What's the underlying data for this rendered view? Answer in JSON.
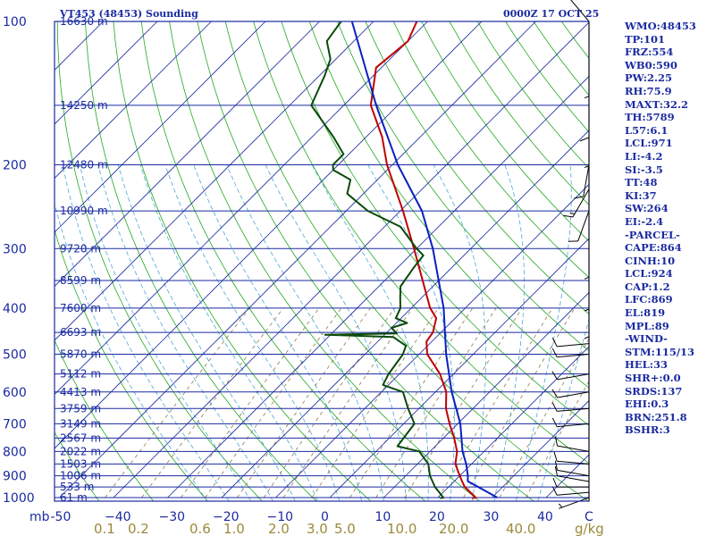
{
  "header": {
    "station": "VT453 (48453) Sounding",
    "time": "0000Z 17 OCT 25"
  },
  "units": {
    "pressure": "mb",
    "temperature": "C",
    "mixing": "g/kg"
  },
  "colors": {
    "frame": "#1a2aa0",
    "isobar": "#1a2aa0",
    "isotherm": "#1a2aa0",
    "dry_adiabat": "#22a822",
    "moist_adiabat": "#4aa8d8",
    "mixing_line": "#8a7a4a",
    "temperature": "#c00000",
    "dewpoint": "#0a4a0a",
    "parcel": "#0a20c0",
    "wind": "#000000"
  },
  "chart_data": {
    "type": "skew-t",
    "title": "VT453 (48453) Sounding 0000Z 17 OCT 25",
    "pressure_levels": [
      100,
      200,
      300,
      400,
      500,
      600,
      700,
      800,
      900,
      1000
    ],
    "pressure_labels": [
      "100",
      "200",
      "300",
      "400",
      "500",
      "600",
      "700",
      "800",
      "900",
      "1000"
    ],
    "pressure_unit_label": "mb",
    "temperature_ticks": [
      -50,
      -40,
      -30,
      -20,
      -10,
      0,
      10,
      20,
      30,
      40,
      50
    ],
    "temperature_labels": [
      "-50",
      "−40",
      "−30",
      "−20",
      "−10",
      "0",
      "10",
      "20",
      "30",
      "40"
    ],
    "temperature_unit_label": "C",
    "mixing_ratio_labels": [
      "0.1",
      "0.2",
      "0.6",
      "1.0",
      "2.0",
      "3.0",
      "5.0",
      "10.0",
      "20.0",
      "40.0"
    ],
    "mixing_ratio_unit_label": "g/kg",
    "height_labels": [
      {
        "p": 100,
        "label": "16630 m"
      },
      {
        "p": 150,
        "label": "14250 m"
      },
      {
        "p": 200,
        "label": "12480 m"
      },
      {
        "p": 250,
        "label": "10990 m"
      },
      {
        "p": 300,
        "label": "9720 m"
      },
      {
        "p": 350,
        "label": "8599 m"
      },
      {
        "p": 400,
        "label": "7600 m"
      },
      {
        "p": 450,
        "label": "6693 m"
      },
      {
        "p": 500,
        "label": "5870 m"
      },
      {
        "p": 550,
        "label": "5112 m"
      },
      {
        "p": 600,
        "label": "4413 m"
      },
      {
        "p": 650,
        "label": "3759 m"
      },
      {
        "p": 700,
        "label": "3149 m"
      },
      {
        "p": 750,
        "label": "2567 m"
      },
      {
        "p": 800,
        "label": "2022 m"
      },
      {
        "p": 850,
        "label": "1503 m"
      },
      {
        "p": 900,
        "label": "1006 m"
      },
      {
        "p": 950,
        "label": "533 m"
      },
      {
        "p": 1000,
        "label": "61 m"
      }
    ],
    "series": [
      {
        "name": "temperature",
        "points": [
          [
            1003,
            26.5
          ],
          [
            1000,
            27
          ],
          [
            950,
            23
          ],
          [
            925,
            21.5
          ],
          [
            900,
            20
          ],
          [
            850,
            17
          ],
          [
            800,
            15
          ],
          [
            750,
            12
          ],
          [
            700,
            8.5
          ],
          [
            650,
            5
          ],
          [
            600,
            2
          ],
          [
            550,
            -2.5
          ],
          [
            500,
            -8.5
          ],
          [
            470,
            -11
          ],
          [
            450,
            -11.5
          ],
          [
            420,
            -13.5
          ],
          [
            400,
            -16.5
          ],
          [
            380,
            -19
          ],
          [
            350,
            -23
          ],
          [
            300,
            -30.5
          ],
          [
            250,
            -39.5
          ],
          [
            200,
            -51
          ],
          [
            175,
            -57
          ],
          [
            150,
            -65
          ],
          [
            125,
            -71
          ],
          [
            110,
            -70
          ],
          [
            100,
            -72
          ]
        ]
      },
      {
        "name": "dewpoint",
        "points": [
          [
            1003,
            20.5
          ],
          [
            1000,
            21
          ],
          [
            950,
            17.5
          ],
          [
            900,
            14.5
          ],
          [
            850,
            12
          ],
          [
            800,
            8
          ],
          [
            780,
            3
          ],
          [
            700,
            2
          ],
          [
            650,
            -2
          ],
          [
            600,
            -6
          ],
          [
            580,
            -11
          ],
          [
            550,
            -12
          ],
          [
            500,
            -13
          ],
          [
            480,
            -14
          ],
          [
            460,
            -18
          ],
          [
            455,
            -31
          ],
          [
            452,
            -18
          ],
          [
            440,
            -20
          ],
          [
            430,
            -18
          ],
          [
            420,
            -21
          ],
          [
            400,
            -22
          ],
          [
            380,
            -24
          ],
          [
            360,
            -26
          ],
          [
            330,
            -27
          ],
          [
            310,
            -27.5
          ],
          [
            300,
            -30
          ],
          [
            270,
            -37
          ],
          [
            250,
            -46
          ],
          [
            230,
            -53
          ],
          [
            215,
            -55
          ],
          [
            205,
            -60
          ],
          [
            200,
            -61
          ],
          [
            190,
            -61
          ],
          [
            175,
            -66
          ],
          [
            150,
            -76
          ],
          [
            130,
            -79
          ],
          [
            120,
            -81
          ],
          [
            110,
            -85
          ],
          [
            100,
            -86
          ]
        ]
      },
      {
        "name": "parcel",
        "points": [
          [
            1000,
            31
          ],
          [
            950,
            25.5
          ],
          [
            924,
            22.5
          ],
          [
            900,
            21.5
          ],
          [
            850,
            19
          ],
          [
            800,
            16
          ],
          [
            700,
            10.5
          ],
          [
            600,
            3
          ],
          [
            500,
            -5
          ],
          [
            400,
            -14
          ],
          [
            300,
            -27
          ],
          [
            250,
            -36
          ],
          [
            200,
            -49
          ],
          [
            150,
            -64
          ],
          [
            100,
            -84
          ]
        ]
      }
    ],
    "wind_barbs": [
      {
        "p": 1000,
        "dir": 250,
        "kt": 5
      },
      {
        "p": 975,
        "dir": 265,
        "kt": 10
      },
      {
        "p": 950,
        "dir": 270,
        "kt": 10
      },
      {
        "p": 925,
        "dir": 280,
        "kt": 10
      },
      {
        "p": 900,
        "dir": 280,
        "kt": 10
      },
      {
        "p": 850,
        "dir": 275,
        "kt": 10
      },
      {
        "p": 800,
        "dir": 280,
        "kt": 10
      },
      {
        "p": 700,
        "dir": 265,
        "kt": 10
      },
      {
        "p": 650,
        "dir": 265,
        "kt": 10
      },
      {
        "p": 600,
        "dir": 260,
        "kt": 10
      },
      {
        "p": 550,
        "dir": 260,
        "kt": 10
      },
      {
        "p": 500,
        "dir": 265,
        "kt": 10
      },
      {
        "p": 475,
        "dir": 265,
        "kt": 10
      },
      {
        "p": 400,
        "dir": 180,
        "kt": 5
      },
      {
        "p": 350,
        "dir": 180,
        "kt": 5
      },
      {
        "p": 300,
        "dir": 180,
        "kt": 5
      },
      {
        "p": 250,
        "dir": 200,
        "kt": 10
      },
      {
        "p": 225,
        "dir": 210,
        "kt": 15
      },
      {
        "p": 200,
        "dir": 190,
        "kt": 10
      },
      {
        "p": 175,
        "dir": 180,
        "kt": 5
      },
      {
        "p": 150,
        "dir": 180,
        "kt": 10
      },
      {
        "p": 125,
        "dir": 180,
        "kt": 5
      },
      {
        "p": 100,
        "dir": 320,
        "kt": 5
      }
    ]
  },
  "indices": [
    "WMO:48453",
    "TP:101",
    "FRZ:554",
    "WB0:590",
    "PW:2.25",
    "RH:75.9",
    "MAXT:32.2",
    "TH:5789",
    "L57:6.1",
    "LCL:971",
    "LI:-4.2",
    "SI:-3.5",
    "TT:48",
    "KI:37",
    "SW:264",
    "EI:-2.4",
    "-PARCEL-",
    "CAPE:864",
    "CINH:10",
    "LCL:924",
    "CAP:1.2",
    "LFC:869",
    "EL:819",
    "MPL:89",
    "-WIND-",
    "STM:115/13",
    "HEL:33",
    "SHR+:0.0",
    "SRDS:137",
    "EHI:0.3",
    "BRN:251.8",
    "BSHR:3"
  ]
}
